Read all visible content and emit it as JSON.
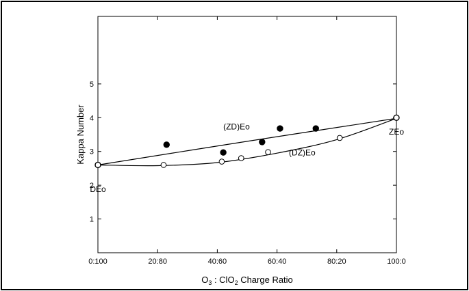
{
  "chart_data": {
    "type": "scatter",
    "xlabel": {
      "main": "O",
      "sub1": "3",
      "mid": " : ClO",
      "sub2": "2",
      "tail": " Charge Ratio"
    },
    "ylabel": "Kappa Number",
    "xlim": [
      0,
      100
    ],
    "ylim": [
      0,
      7
    ],
    "x_ticks": [
      0,
      20,
      40,
      60,
      80,
      100
    ],
    "x_tick_labels": [
      "0:100",
      "20:80",
      "40:60",
      "60:40",
      "80:20",
      "100:0"
    ],
    "y_ticks": [
      1,
      2,
      3,
      4,
      5
    ],
    "y_tick_labels": [
      "1",
      "2",
      "3",
      "4",
      "5"
    ],
    "grid": false,
    "series": [
      {
        "name": "(ZD)Eo",
        "marker": "filled-circle",
        "points": [
          [
            0,
            2.6
          ],
          [
            23,
            3.2
          ],
          [
            42,
            2.97
          ],
          [
            55,
            3.28
          ],
          [
            61,
            3.68
          ],
          [
            73,
            3.68
          ],
          [
            100,
            4.0
          ]
        ],
        "fit": [
          [
            0,
            2.6
          ],
          [
            50,
            3.3
          ],
          [
            100,
            3.98
          ]
        ]
      },
      {
        "name": "(DZ)Eo",
        "marker": "open-circle",
        "points": [
          [
            0,
            2.6
          ],
          [
            22,
            2.6
          ],
          [
            41.5,
            2.7
          ],
          [
            48,
            2.8
          ],
          [
            57,
            2.98
          ],
          [
            81,
            3.4
          ],
          [
            100,
            4.0
          ]
        ],
        "fit": [
          [
            0,
            2.6
          ],
          [
            20,
            2.58
          ],
          [
            40,
            2.67
          ],
          [
            60,
            2.95
          ],
          [
            80,
            3.35
          ],
          [
            100,
            3.98
          ]
        ]
      }
    ],
    "annotations": [
      {
        "text": "(ZD)Eo",
        "x": 42,
        "y": 3.65
      },
      {
        "text": "(DZ)Eo",
        "x": 64,
        "y": 2.88
      },
      {
        "text": "ZEo",
        "x": 100,
        "y": 3.5
      },
      {
        "text": "DEo",
        "x": 0,
        "y": 1.8
      }
    ],
    "colors": {
      "ink": "#000000",
      "background": "#ffffff"
    }
  }
}
